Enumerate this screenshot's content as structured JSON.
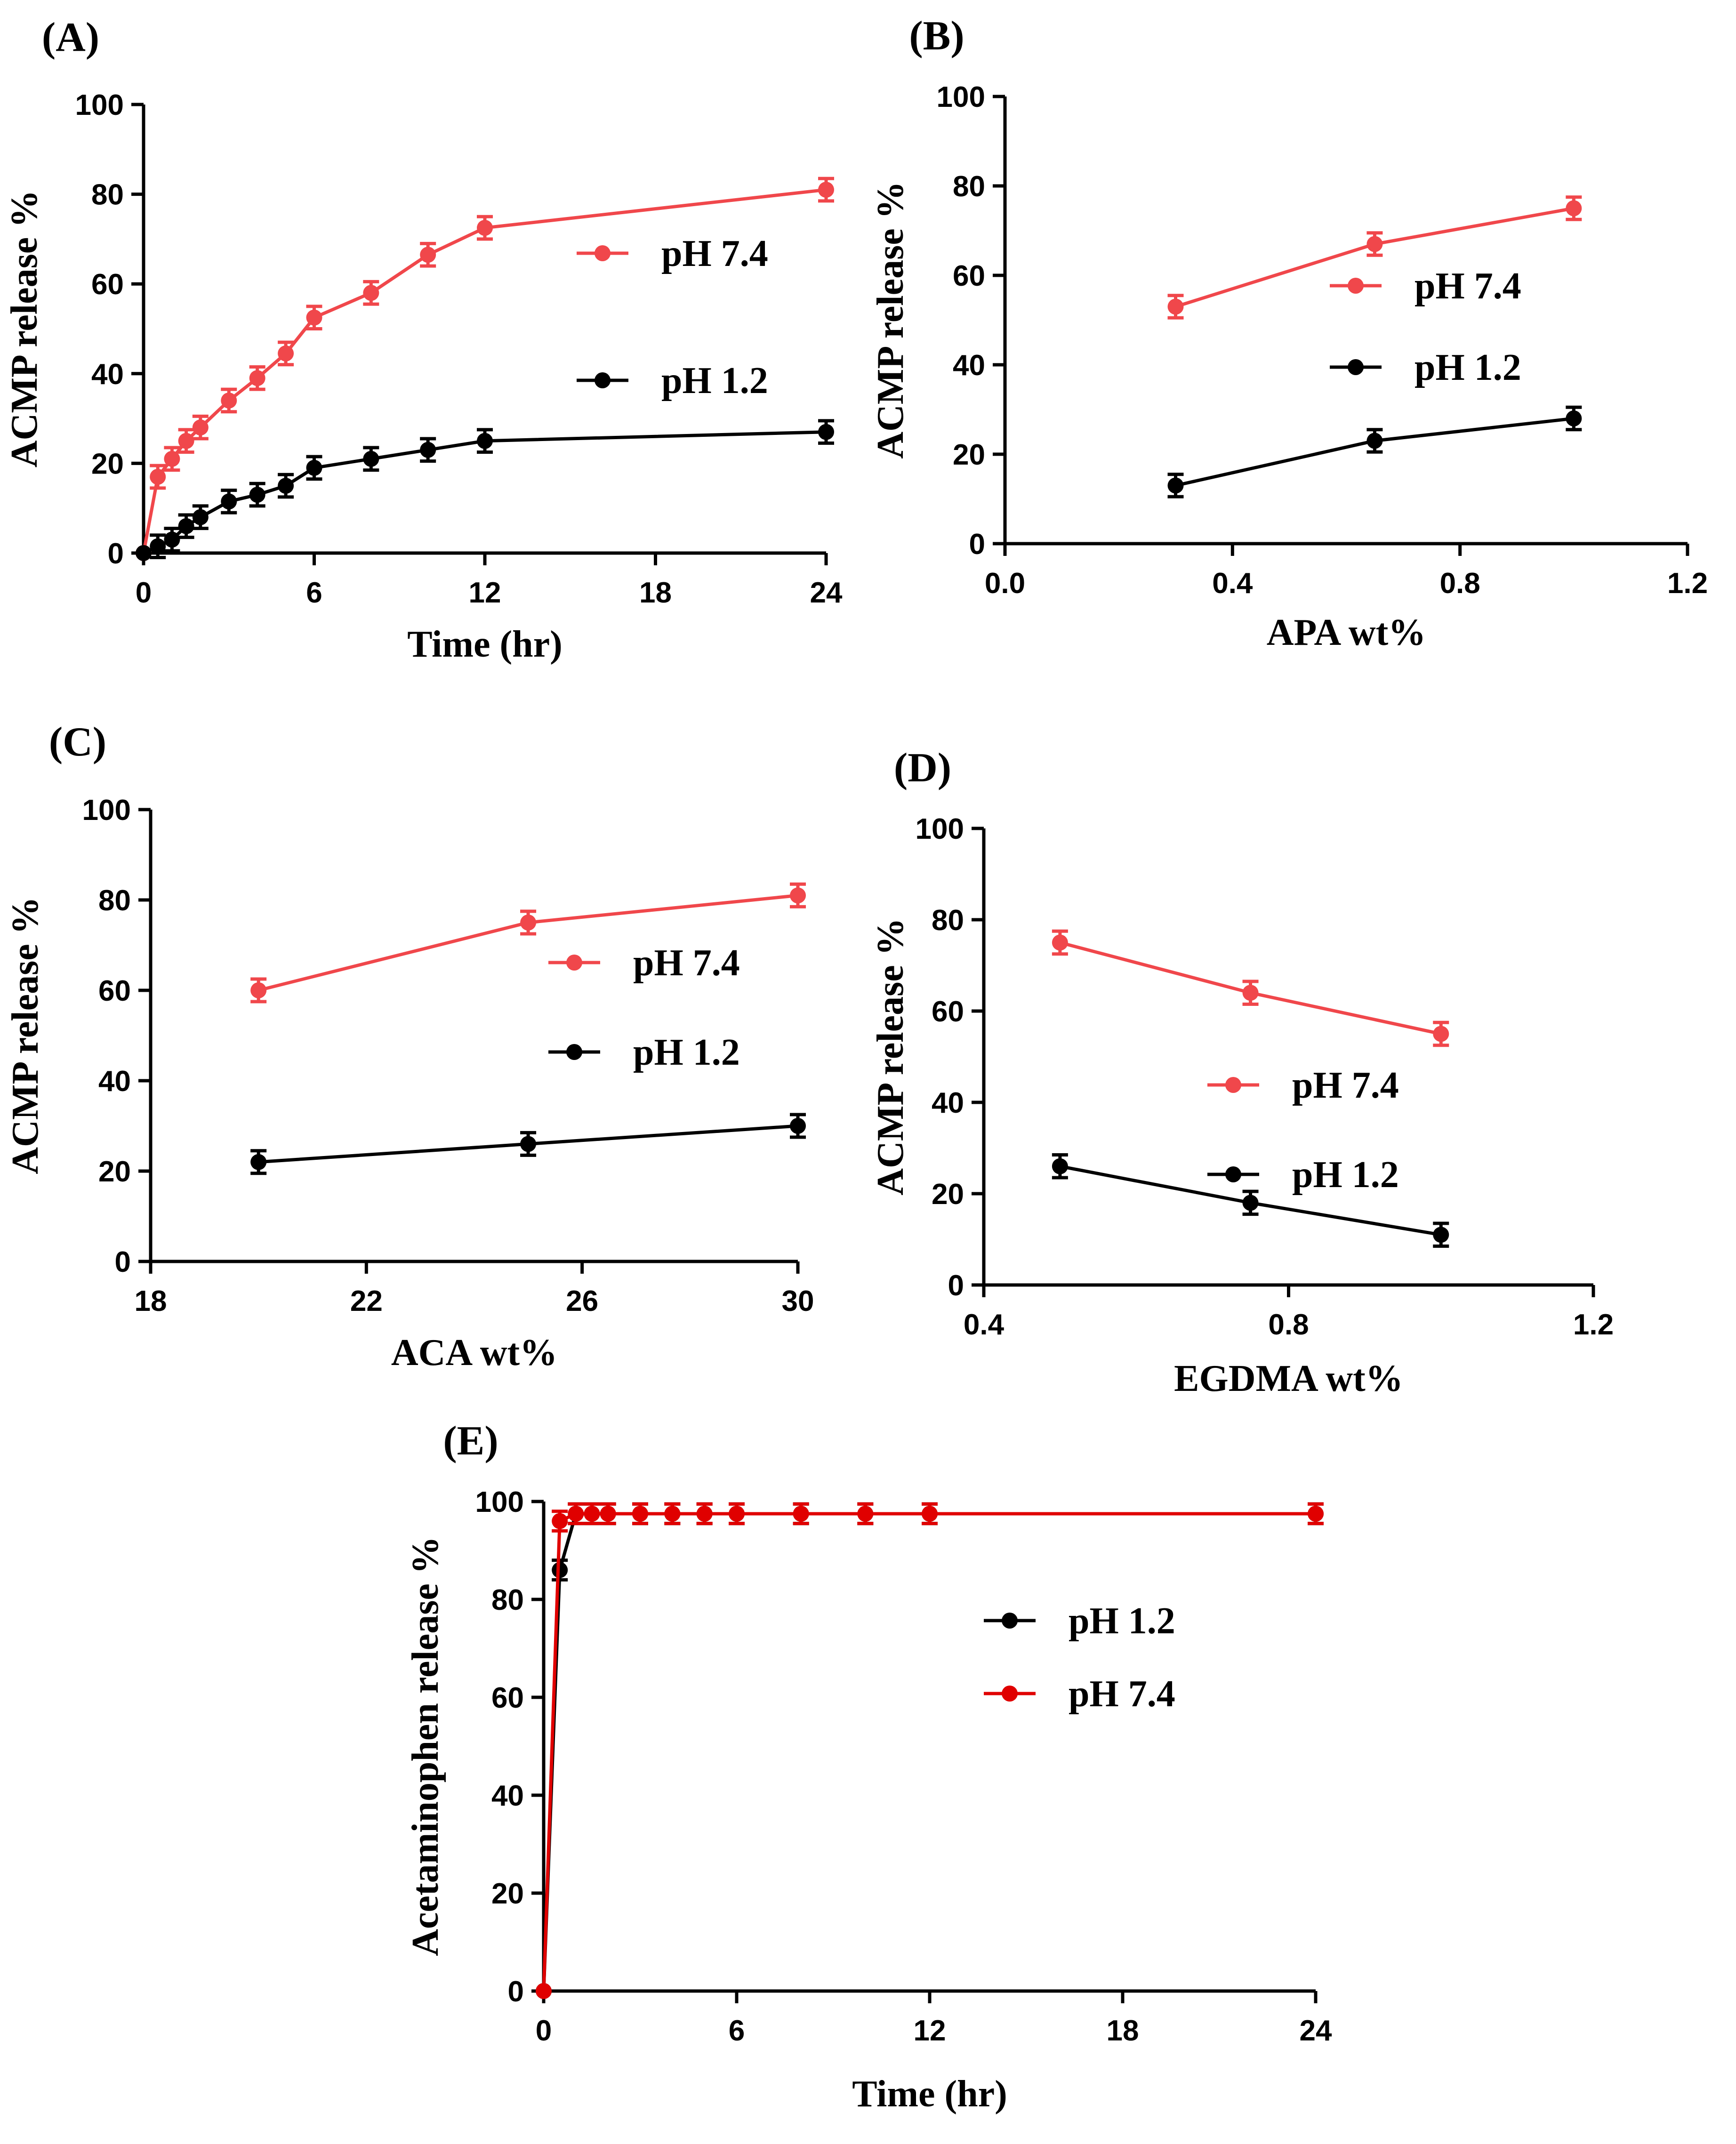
{
  "colors": {
    "pH 7.4": "#f0474b",
    "pH 1.2": "#000000",
    "pH 7.4 dark": "#e00000"
  },
  "chart_data": [
    {
      "panel": "(A)",
      "type": "line",
      "xlabel": "Time (hr)",
      "ylabel": "ACMP release %",
      "xlim": [
        0,
        24
      ],
      "ylim": [
        0,
        100
      ],
      "xticks": [
        0,
        6,
        12,
        18,
        24
      ],
      "yticks": [
        0,
        20,
        40,
        60,
        80,
        100
      ],
      "xtick_labels": [
        "0",
        "6",
        "12",
        "18",
        "24"
      ],
      "ytick_labels": [
        "0",
        "20",
        "40",
        "60",
        "80",
        "100"
      ],
      "legend_position": "right",
      "series": [
        {
          "name": "pH 7.4",
          "color": "#f0474b",
          "x": [
            0,
            0.5,
            1,
            1.5,
            2,
            3,
            4,
            5,
            6,
            8,
            10,
            12,
            24
          ],
          "y": [
            0,
            17,
            21,
            25,
            28,
            34,
            39,
            44.5,
            52.5,
            58,
            66.5,
            72.5,
            81
          ],
          "err": [
            0,
            2.5,
            2.5,
            2.5,
            2.5,
            2.5,
            2.5,
            2.5,
            2.5,
            2.5,
            2.5,
            2.5,
            2.5
          ]
        },
        {
          "name": "pH 1.2",
          "color": "#000000",
          "x": [
            0,
            0.5,
            1,
            1.5,
            2,
            3,
            4,
            5,
            6,
            8,
            10,
            12,
            24
          ],
          "y": [
            0,
            1.5,
            3,
            6,
            8,
            11.5,
            13,
            15,
            19,
            21,
            23,
            25,
            27
          ],
          "err": [
            0,
            2.5,
            2.5,
            2.5,
            2.5,
            2.5,
            2.5,
            2.5,
            2.5,
            2.5,
            2.5,
            2.5,
            2.5
          ]
        }
      ]
    },
    {
      "panel": "(B)",
      "type": "line",
      "xlabel": "APA wt%",
      "ylabel": "ACMP release %",
      "xlim": [
        0.0,
        1.2
      ],
      "ylim": [
        0,
        100
      ],
      "xticks": [
        0.0,
        0.4,
        0.8,
        1.2
      ],
      "yticks": [
        0,
        20,
        40,
        60,
        80,
        100
      ],
      "xtick_labels": [
        "0.0",
        "0.4",
        "0.8",
        "1.2"
      ],
      "ytick_labels": [
        "0",
        "20",
        "40",
        "60",
        "80",
        "100"
      ],
      "legend_position": "right",
      "series": [
        {
          "name": "pH 7.4",
          "color": "#f0474b",
          "x": [
            0.3,
            0.65,
            1.0
          ],
          "y": [
            53,
            67,
            75
          ],
          "err": [
            2.5,
            2.5,
            2.5
          ]
        },
        {
          "name": "pH 1.2",
          "color": "#000000",
          "x": [
            0.3,
            0.65,
            1.0
          ],
          "y": [
            13,
            23,
            28
          ],
          "err": [
            2.5,
            2.5,
            2.5
          ]
        }
      ]
    },
    {
      "panel": "(C)",
      "type": "line",
      "xlabel": "ACA wt%",
      "ylabel": "ACMP release %",
      "xlim": [
        18,
        30
      ],
      "ylim": [
        0,
        100
      ],
      "xticks": [
        18,
        22,
        26,
        30
      ],
      "yticks": [
        0,
        20,
        40,
        60,
        80,
        100
      ],
      "xtick_labels": [
        "18",
        "22",
        "26",
        "30"
      ],
      "ytick_labels": [
        "0",
        "20",
        "40",
        "60",
        "80",
        "100"
      ],
      "legend_position": "right",
      "series": [
        {
          "name": "pH 7.4",
          "color": "#f0474b",
          "x": [
            20,
            25,
            30
          ],
          "y": [
            60,
            75,
            81
          ],
          "err": [
            2.5,
            2.5,
            2.5
          ]
        },
        {
          "name": "pH 1.2",
          "color": "#000000",
          "x": [
            20,
            25,
            30
          ],
          "y": [
            22,
            26,
            30
          ],
          "err": [
            2.5,
            2.5,
            2.5
          ]
        }
      ]
    },
    {
      "panel": "(D)",
      "type": "line",
      "xlabel": "EGDMA wt%",
      "ylabel": "ACMP release %",
      "xlim": [
        0.4,
        1.2
      ],
      "ylim": [
        0,
        100
      ],
      "xticks": [
        0.4,
        0.8,
        1.2
      ],
      "yticks": [
        0,
        20,
        40,
        60,
        80,
        100
      ],
      "xtick_labels": [
        "0.4",
        "0.8",
        "1.2"
      ],
      "ytick_labels": [
        "0",
        "20",
        "40",
        "60",
        "80",
        "100"
      ],
      "legend_position": "right",
      "series": [
        {
          "name": "pH 7.4",
          "color": "#f0474b",
          "x": [
            0.5,
            0.75,
            1.0
          ],
          "y": [
            75,
            64,
            55
          ],
          "err": [
            2.5,
            2.5,
            2.5
          ]
        },
        {
          "name": "pH 1.2",
          "color": "#000000",
          "x": [
            0.5,
            0.75,
            1.0
          ],
          "y": [
            26,
            18,
            11
          ],
          "err": [
            2.5,
            2.5,
            2.5
          ]
        }
      ]
    },
    {
      "panel": "(E)",
      "type": "line",
      "xlabel": "Time (hr)",
      "ylabel": "Acetaminophen release %",
      "xlim": [
        0,
        24
      ],
      "ylim": [
        0,
        100
      ],
      "xticks": [
        0,
        6,
        12,
        18,
        24
      ],
      "yticks": [
        0,
        20,
        40,
        60,
        80,
        100
      ],
      "xtick_labels": [
        "0",
        "6",
        "12",
        "18",
        "24"
      ],
      "ytick_labels": [
        "0",
        "20",
        "40",
        "60",
        "80",
        "100"
      ],
      "legend_position": "center-right",
      "series": [
        {
          "name": "pH 1.2",
          "color": "#000000",
          "x": [
            0,
            0.5,
            1,
            1.5,
            2,
            3,
            4,
            5,
            6,
            8,
            10,
            12,
            24
          ],
          "y": [
            0,
            86,
            97.5,
            97.5,
            97.5,
            97.5,
            97.5,
            97.5,
            97.5,
            97.5,
            97.5,
            97.5,
            97.5
          ],
          "err": [
            0,
            2,
            2,
            2,
            2,
            2,
            2,
            2,
            2,
            2,
            2,
            2,
            2
          ]
        },
        {
          "name": "pH 7.4",
          "color": "#e00000",
          "x": [
            0,
            0.5,
            1,
            1.5,
            2,
            3,
            4,
            5,
            6,
            8,
            10,
            12,
            24
          ],
          "y": [
            0,
            96,
            97.5,
            97.5,
            97.5,
            97.5,
            97.5,
            97.5,
            97.5,
            97.5,
            97.5,
            97.5,
            97.5
          ],
          "err": [
            0,
            2,
            2,
            2,
            2,
            2,
            2,
            2,
            2,
            2,
            2,
            2,
            2
          ]
        }
      ]
    }
  ]
}
